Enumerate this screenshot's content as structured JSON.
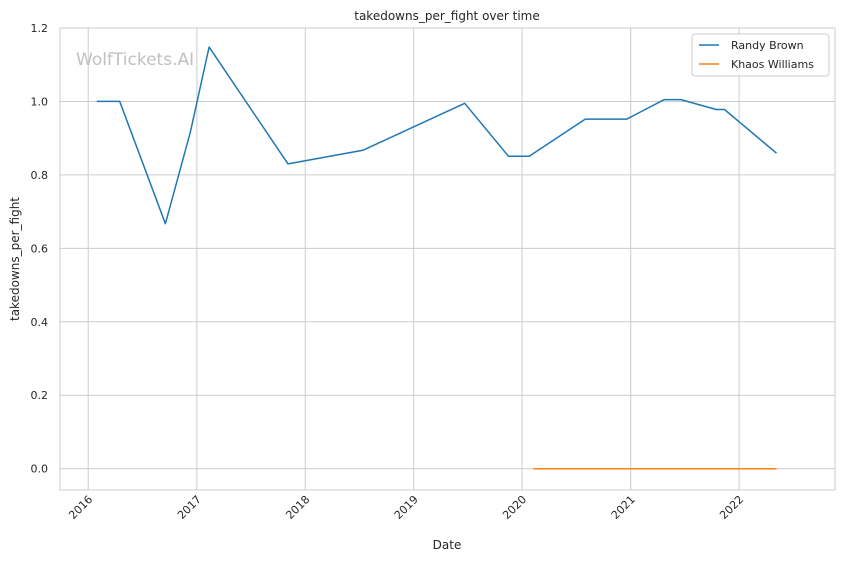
{
  "watermark": "WolfTickets.AI",
  "chart_data": {
    "type": "line",
    "title": "takedowns_per_fight over time",
    "xlabel": "Date",
    "ylabel": "takedowns_per_fight",
    "x_axis": "date",
    "xlim": [
      "2015-09-28",
      "2022-11-20"
    ],
    "ylim": [
      -0.058,
      1.2
    ],
    "yticks": [
      "0.0",
      "0.2",
      "0.4",
      "0.6",
      "0.8",
      "1.0",
      "1.2"
    ],
    "xticks": [
      "2016",
      "2017",
      "2018",
      "2019",
      "2020",
      "2021",
      "2022"
    ],
    "grid": true,
    "legend_position": "top-right",
    "series": [
      {
        "name": "Randy Brown",
        "color": "#1f77b4",
        "points": [
          [
            "2016-01-30",
            1.0
          ],
          [
            "2016-04-16",
            1.0
          ],
          [
            "2016-09-17",
            0.667
          ],
          [
            "2016-12-10",
            0.917
          ],
          [
            "2017-02-11",
            1.148
          ],
          [
            "2017-11-04",
            0.83
          ],
          [
            "2018-07-14",
            0.867
          ],
          [
            "2019-06-22",
            0.995
          ],
          [
            "2019-11-16",
            0.851
          ],
          [
            "2020-01-25",
            0.851
          ],
          [
            "2020-08-01",
            0.952
          ],
          [
            "2020-12-19",
            0.952
          ],
          [
            "2021-04-24",
            1.005
          ],
          [
            "2021-06-19",
            1.005
          ],
          [
            "2021-10-16",
            0.978
          ],
          [
            "2021-11-13",
            0.978
          ],
          [
            "2022-05-07",
            0.859
          ]
        ]
      },
      {
        "name": "Khaos Williams",
        "color": "#ff7f0e",
        "points": [
          [
            "2020-02-08",
            0.0
          ],
          [
            "2022-05-07",
            0.0
          ]
        ]
      }
    ]
  }
}
